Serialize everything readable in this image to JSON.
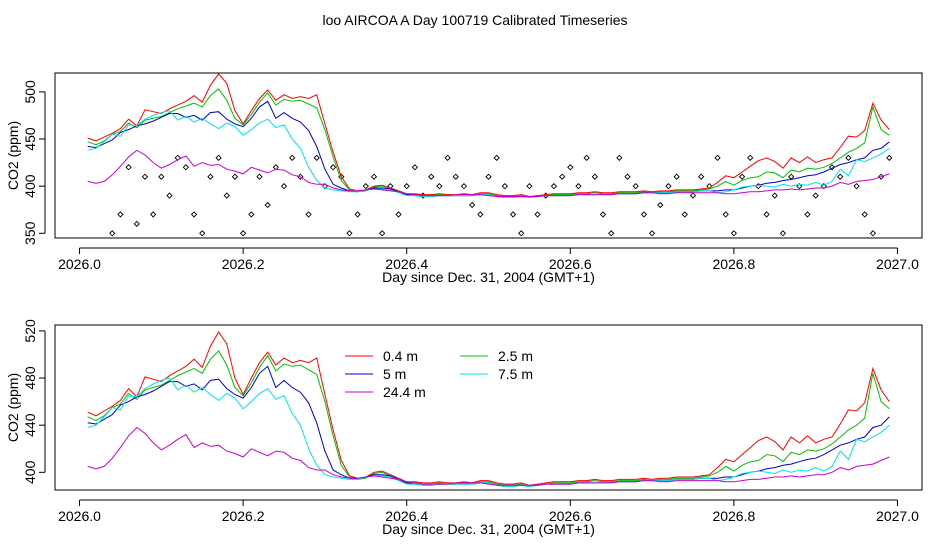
{
  "page_title": "loo AIRCOA A  Day 100719  Calibrated Timeseries",
  "colors": {
    "0.4 m": "#ff0000",
    "2.5 m": "#00c000",
    "5 m": "#0000cc",
    "7.5 m": "#00e5ee",
    "24.4 m": "#cc00cc",
    "axis": "#000000",
    "points": "#000000"
  },
  "chart_data": [
    {
      "type": "line",
      "panel": "top",
      "xlabel": "Day since Dec. 31, 2004 (GMT+1)",
      "ylabel": "CO2 (ppm)",
      "xlim": [
        2025.97,
        2027.03
      ],
      "ylim": [
        345,
        520
      ],
      "xticks": [
        2026.0,
        2026.2,
        2026.4,
        2026.6,
        2026.8,
        2027.0
      ],
      "xtick_labels": [
        "2026.0",
        "2026.2",
        "2026.4",
        "2026.6",
        "2026.8",
        "2027.0"
      ],
      "yticks": [
        350,
        400,
        450,
        500
      ],
      "ytick_labels": [
        "350",
        "400",
        "450",
        "500"
      ],
      "grid": false,
      "legend": "none",
      "x": [
        2026.01,
        2026.02,
        2026.03,
        2026.04,
        2026.05,
        2026.06,
        2026.07,
        2026.08,
        2026.09,
        2026.1,
        2026.11,
        2026.12,
        2026.13,
        2026.14,
        2026.15,
        2026.16,
        2026.17,
        2026.18,
        2026.19,
        2026.2,
        2026.21,
        2026.22,
        2026.23,
        2026.24,
        2026.25,
        2026.26,
        2026.27,
        2026.28,
        2026.29,
        2026.3,
        2026.31,
        2026.32,
        2026.33,
        2026.34,
        2026.35,
        2026.36,
        2026.37,
        2026.38,
        2026.39,
        2026.4,
        2026.41,
        2026.42,
        2026.43,
        2026.44,
        2026.45,
        2026.46,
        2026.47,
        2026.48,
        2026.49,
        2026.5,
        2026.51,
        2026.52,
        2026.53,
        2026.54,
        2026.55,
        2026.56,
        2026.57,
        2026.58,
        2026.59,
        2026.6,
        2026.61,
        2026.62,
        2026.63,
        2026.64,
        2026.65,
        2026.66,
        2026.67,
        2026.68,
        2026.69,
        2026.7,
        2026.71,
        2026.72,
        2026.73,
        2026.74,
        2026.75,
        2026.76,
        2026.77,
        2026.78,
        2026.79,
        2026.8,
        2026.81,
        2026.82,
        2026.83,
        2026.84,
        2026.85,
        2026.86,
        2026.87,
        2026.88,
        2026.89,
        2026.9,
        2026.91,
        2026.92,
        2026.93,
        2026.94,
        2026.95,
        2026.96,
        2026.97,
        2026.98,
        2026.99
      ],
      "series": [
        {
          "name": "0.4 m",
          "values": [
            451,
            448,
            452,
            456,
            461,
            471,
            464,
            481,
            479,
            477,
            482,
            486,
            490,
            496,
            489,
            507,
            519,
            509,
            480,
            466,
            480,
            493,
            502,
            491,
            497,
            493,
            495,
            493,
            497,
            466,
            436,
            410,
            397,
            395,
            396,
            400,
            401,
            398,
            395,
            392,
            392,
            391,
            391,
            392,
            391,
            391,
            392,
            391,
            393,
            393,
            391,
            390,
            390,
            391,
            389,
            390,
            391,
            392,
            392,
            392,
            393,
            393,
            394,
            393,
            393,
            394,
            394,
            394,
            395,
            394,
            395,
            395,
            396,
            396,
            396,
            397,
            398,
            404,
            411,
            409,
            415,
            421,
            427,
            430,
            426,
            419,
            430,
            425,
            431,
            425,
            428,
            430,
            441,
            453,
            452,
            459,
            488,
            470,
            460
          ]
        },
        {
          "name": "2.5 m",
          "values": [
            447,
            444,
            448,
            455,
            458,
            467,
            462,
            470,
            472,
            474,
            478,
            482,
            485,
            488,
            484,
            496,
            503,
            491,
            472,
            465,
            476,
            489,
            499,
            486,
            492,
            490,
            491,
            487,
            483,
            460,
            431,
            406,
            396,
            394,
            395,
            399,
            400,
            397,
            394,
            391,
            391,
            390,
            390,
            391,
            390,
            390,
            391,
            390,
            392,
            392,
            390,
            389,
            389,
            390,
            388,
            389,
            390,
            391,
            391,
            391,
            392,
            392,
            393,
            392,
            392,
            393,
            393,
            393,
            394,
            393,
            394,
            394,
            395,
            395,
            395,
            396,
            397,
            400,
            405,
            401,
            406,
            409,
            410,
            415,
            414,
            409,
            417,
            415,
            419,
            418,
            420,
            424,
            430,
            436,
            440,
            446,
            484,
            460,
            454
          ]
        },
        {
          "name": "5 m",
          "values": [
            442,
            441,
            445,
            449,
            457,
            460,
            464,
            466,
            469,
            473,
            477,
            477,
            473,
            475,
            470,
            478,
            479,
            471,
            466,
            463,
            472,
            484,
            490,
            472,
            478,
            472,
            468,
            459,
            442,
            418,
            402,
            398,
            395,
            394,
            396,
            398,
            398,
            397,
            394,
            391,
            390,
            389,
            389,
            390,
            390,
            390,
            390,
            390,
            391,
            391,
            389,
            388,
            388,
            389,
            388,
            389,
            390,
            390,
            390,
            390,
            391,
            391,
            391,
            391,
            391,
            392,
            392,
            392,
            393,
            393,
            393,
            393,
            394,
            394,
            394,
            395,
            395,
            395,
            396,
            396,
            398,
            400,
            401,
            403,
            404,
            406,
            407,
            409,
            411,
            412,
            415,
            419,
            423,
            425,
            428,
            430,
            438,
            440,
            447
          ]
        },
        {
          "name": "7.5 m",
          "values": [
            438,
            440,
            447,
            455,
            453,
            465,
            464,
            471,
            475,
            478,
            480,
            470,
            474,
            468,
            472,
            466,
            461,
            467,
            463,
            454,
            460,
            467,
            471,
            462,
            465,
            450,
            440,
            420,
            406,
            398,
            396,
            395,
            394,
            394,
            396,
            397,
            397,
            396,
            393,
            390,
            390,
            389,
            389,
            390,
            390,
            390,
            390,
            390,
            391,
            391,
            389,
            388,
            388,
            389,
            388,
            389,
            390,
            390,
            390,
            390,
            391,
            391,
            391,
            391,
            391,
            392,
            392,
            392,
            393,
            393,
            393,
            393,
            394,
            394,
            394,
            395,
            395,
            393,
            394,
            396,
            399,
            400,
            401,
            400,
            399,
            402,
            400,
            402,
            401,
            404,
            401,
            405,
            418,
            411,
            428,
            426,
            430,
            434,
            440
          ]
        },
        {
          "name": "24.4 m",
          "values": [
            405,
            403,
            405,
            412,
            421,
            431,
            438,
            433,
            425,
            419,
            423,
            428,
            432,
            421,
            425,
            422,
            423,
            418,
            416,
            413,
            420,
            417,
            414,
            418,
            417,
            412,
            410,
            404,
            402,
            402,
            398,
            396,
            395,
            395,
            396,
            397,
            396,
            395,
            394,
            392,
            391,
            390,
            390,
            390,
            390,
            391,
            391,
            391,
            391,
            390,
            389,
            389,
            389,
            389,
            389,
            389,
            390,
            390,
            390,
            390,
            391,
            391,
            391,
            391,
            391,
            392,
            392,
            392,
            393,
            393,
            392,
            392,
            393,
            393,
            393,
            393,
            393,
            393,
            392,
            392,
            393,
            394,
            394,
            395,
            396,
            396,
            397,
            396,
            397,
            398,
            398,
            400,
            404,
            402,
            405,
            406,
            407,
            410,
            413
          ]
        }
      ],
      "points": {
        "x": [
          2026.04,
          2026.05,
          2026.06,
          2026.07,
          2026.08,
          2026.09,
          2026.1,
          2026.11,
          2026.12,
          2026.13,
          2026.14,
          2026.15,
          2026.16,
          2026.17,
          2026.18,
          2026.19,
          2026.2,
          2026.21,
          2026.22,
          2026.23,
          2026.24,
          2026.25,
          2026.26,
          2026.27,
          2026.28,
          2026.29,
          2026.3,
          2026.31,
          2026.32,
          2026.33,
          2026.34,
          2026.35,
          2026.36,
          2026.37,
          2026.38,
          2026.39,
          2026.4,
          2026.41,
          2026.42,
          2026.43,
          2026.44,
          2026.45,
          2026.46,
          2026.47,
          2026.48,
          2026.49,
          2026.5,
          2026.51,
          2026.52,
          2026.53,
          2026.54,
          2026.55,
          2026.56,
          2026.57,
          2026.58,
          2026.59,
          2026.6,
          2026.61,
          2026.62,
          2026.63,
          2026.64,
          2026.65,
          2026.66,
          2026.67,
          2026.68,
          2026.69,
          2026.7,
          2026.71,
          2026.72,
          2026.73,
          2026.74,
          2026.75,
          2026.76,
          2026.77,
          2026.78,
          2026.79,
          2026.8,
          2026.81,
          2026.82,
          2026.83,
          2026.84,
          2026.85,
          2026.86,
          2026.87,
          2026.88,
          2026.89,
          2026.9,
          2026.91,
          2026.92,
          2026.93,
          2026.94,
          2026.95,
          2026.96,
          2026.97,
          2026.98,
          2026.99
        ],
        "y": [
          350,
          370,
          420,
          360,
          410,
          370,
          410,
          390,
          430,
          420,
          370,
          350,
          410,
          430,
          390,
          410,
          350,
          370,
          410,
          380,
          420,
          400,
          430,
          410,
          370,
          430,
          400,
          420,
          410,
          350,
          370,
          400,
          410,
          350,
          400,
          370,
          400,
          420,
          390,
          410,
          400,
          430,
          410,
          400,
          380,
          370,
          410,
          430,
          400,
          370,
          350,
          400,
          370,
          390,
          400,
          410,
          420,
          400,
          430,
          410,
          370,
          350,
          430,
          410,
          400,
          370,
          350,
          380,
          400,
          410,
          370,
          390,
          410,
          400,
          430,
          370,
          350,
          410,
          430,
          400,
          370,
          390,
          350,
          410,
          400,
          370,
          390,
          400,
          420,
          410,
          430,
          400,
          370,
          350,
          410,
          430
        ]
      }
    },
    {
      "type": "line",
      "panel": "bottom",
      "xlabel": "Day since Dec. 31, 2004 (GMT+1)",
      "ylabel": "CO2 (ppm)",
      "xlim": [
        2025.97,
        2027.03
      ],
      "ylim": [
        385,
        525
      ],
      "xticks": [
        2026.0,
        2026.2,
        2026.4,
        2026.6,
        2026.8,
        2027.0
      ],
      "xtick_labels": [
        "2026.0",
        "2026.2",
        "2026.4",
        "2026.6",
        "2026.8",
        "2027.0"
      ],
      "yticks": [
        400,
        440,
        480,
        520
      ],
      "ytick_labels": [
        "400",
        "440",
        "480",
        "520"
      ],
      "grid": false,
      "legend": "top-center",
      "legend_entries": [
        "0.4 m",
        "2.5 m",
        "5 m",
        "7.5 m",
        "24.4 m"
      ]
    }
  ]
}
